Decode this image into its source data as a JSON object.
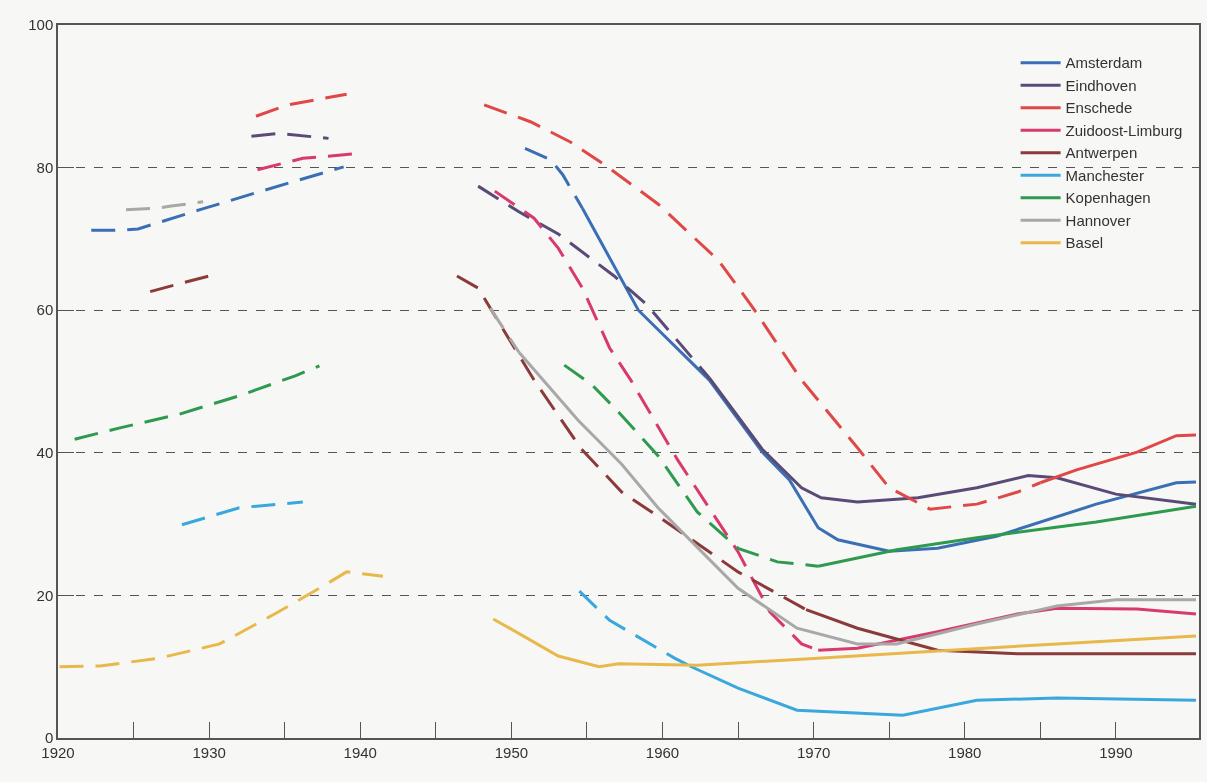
{
  "chart_data": {
    "type": "line",
    "xlim": [
      1920,
      1995.5
    ],
    "ylim": [
      0,
      100
    ],
    "xticks": [
      1920,
      {
        "value": 1925,
        "label": null
      },
      1930,
      {
        "value": 1935,
        "label": null
      },
      1940,
      {
        "value": 1945,
        "label": null
      },
      1950,
      {
        "value": 1955,
        "label": null
      },
      1960,
      {
        "value": 1965,
        "label": null
      },
      1970,
      {
        "value": 1975,
        "label": null
      },
      1980,
      {
        "value": 1985,
        "label": null
      },
      1990
    ],
    "yticks": [
      0,
      20,
      40,
      60,
      80,
      100
    ],
    "grid": "y",
    "legend": "top right",
    "marker": "none",
    "series": [
      {
        "name": "Amsterdam",
        "color": "#3a6fb5",
        "line_style": "solid",
        "x": [
          1954.7,
          1958.4,
          1963.1,
          1966.6,
          1968.4,
          1970.3,
          1971.6,
          1975,
          1978.2,
          1982.1,
          1988.7,
          1994,
          1995.3
        ],
        "values": [
          74.3,
          60,
          50.2,
          40.1,
          36.2,
          29.5,
          27.8,
          26.2,
          26.6,
          28.3,
          32.8,
          35.8,
          35.9
        ]
      },
      {
        "color": "#3a6fb5",
        "line_style": "dashed",
        "x": [
          1922.2,
          1924.1,
          1925.3,
          1929.4,
          1933.3,
          1936,
          1938.9,
          1945,
          1950.9,
          1952.6,
          1953.4,
          1954.7
        ],
        "values": [
          71.2,
          71.2,
          71.4,
          74.1,
          76.6,
          78.3,
          80.1,
          null,
          82.7,
          81.1,
          79,
          74.3
        ]
      },
      {
        "name": "Eindhoven",
        "color": "#5a4a78",
        "line_style": "solid",
        "x": [
          1963.1,
          1966.6,
          1969.2,
          1970.5,
          1972.9,
          1976.9,
          1980.8,
          1984.2,
          1986.1,
          1990,
          1995.3
        ],
        "values": [
          50.5,
          40.5,
          35.1,
          33.7,
          33.1,
          33.7,
          35.1,
          36.8,
          36.5,
          34.2,
          32.8
        ]
      },
      {
        "color": "#5a4a78",
        "line_style": "dashed",
        "x": [
          1932.8,
          1934.6,
          1937.9,
          1942,
          1947.8,
          1950.5,
          1953.1,
          1956.8,
          1958.9,
          1963.1
        ],
        "values": [
          84.4,
          84.8,
          84.1,
          null,
          77.4,
          73.8,
          70.7,
          64.8,
          60.9,
          50.5
        ]
      },
      {
        "name": "Enschede",
        "color": "#e04848",
        "line_style": "solid",
        "x": [
          1985,
          1987.4,
          1991.4,
          1994,
          1995.3
        ],
        "values": [
          35.8,
          37.6,
          40.1,
          42.4,
          42.5
        ]
      },
      {
        "color": "#e04848",
        "line_style": "dashed",
        "x": [
          1933.1,
          1935.2,
          1939.1,
          1944,
          1948.2,
          1951.3,
          1953.9,
          1956.3,
          1959.7,
          1963.7,
          1966,
          1969.2,
          1972.9,
          1975,
          1977.7,
          1980.8,
          1983.5,
          1985
        ],
        "values": [
          87.2,
          88.8,
          90.3,
          null,
          88.8,
          86.4,
          83.6,
          80.2,
          74.9,
          67,
          60.3,
          50.2,
          40.7,
          35.1,
          32.1,
          32.8,
          34.5,
          35.8
        ]
      },
      {
        "name": "Zuidoost-Limburg",
        "color": "#d93a6e",
        "line_style": "solid",
        "x": [
          1970.3,
          1972.9,
          1978.2,
          1983.5,
          1986.1,
          1991.4,
          1995.3
        ],
        "values": [
          12.3,
          12.6,
          14.9,
          17.4,
          18.2,
          18.1,
          17.4
        ]
      },
      {
        "color": "#d93a6e",
        "line_style": "dashed",
        "x": [
          1933.2,
          1936.2,
          1939.5,
          1944,
          1948.9,
          1951.5,
          1953.1,
          1954.7,
          1956.5,
          1957.9,
          1961,
          1965,
          1967.1,
          1969.2,
          1970.3
        ],
        "values": [
          79.7,
          81.3,
          81.9,
          null,
          76.7,
          72.9,
          68.7,
          63.1,
          54.7,
          50.2,
          39,
          26.1,
          17.7,
          13.2,
          12.3
        ]
      },
      {
        "name": "Antwerpen",
        "color": "#8b3a3a",
        "line_style": "solid",
        "x": [
          1969.5,
          1972.9,
          1978.2,
          1983.5,
          1995.3
        ],
        "values": [
          18,
          15.4,
          12.3,
          11.8,
          11.8
        ]
      },
      {
        "color": "#8b3a3a",
        "line_style": "dashed",
        "x": [
          1926.1,
          1928,
          1930.2,
          1938,
          1946.4,
          1947.8,
          1949.4,
          1951.5,
          1954.6,
          1957.3,
          1959.7,
          1965,
          1969.5
        ],
        "values": [
          62.6,
          63.7,
          64.9,
          null,
          64.8,
          63.1,
          57.5,
          50.2,
          40.6,
          34.5,
          31.1,
          23.3,
          18
        ]
      },
      {
        "name": "Manchester",
        "color": "#3aa8dc",
        "line_style": "solid",
        "x": [
          1961.8,
          1965,
          1968.9,
          1975.9,
          1980.8,
          1986.1,
          1995.3
        ],
        "values": [
          10.1,
          7,
          3.9,
          3.2,
          5.3,
          5.6,
          5.3
        ]
      },
      {
        "color": "#3aa8dc",
        "line_style": "dashed",
        "x": [
          1928.2,
          1932,
          1936.2,
          1945,
          1954.5,
          1956.5,
          1960.8,
          1961.8
        ],
        "values": [
          29.9,
          32.3,
          33.1,
          null,
          20.6,
          16.5,
          11.2,
          10.1
        ]
      },
      {
        "name": "Kopenhagen",
        "color": "#2e9a4e",
        "line_style": "solid",
        "x": [
          1970.3,
          1975.5,
          1980.8,
          1988.7,
          1995.3
        ],
        "values": [
          24.1,
          26.4,
          28.1,
          30.3,
          32.5
        ]
      },
      {
        "color": "#2e9a4e",
        "line_style": "dashed",
        "x": [
          1921.1,
          1924.1,
          1928,
          1932,
          1935.7,
          1937.3,
          1945,
          1953.5,
          1955.3,
          1957.1,
          1959.7,
          1962.3,
          1965,
          1967.6,
          1970.3
        ],
        "values": [
          41.9,
          43.5,
          45.4,
          48,
          50.8,
          52.2,
          null,
          52.3,
          49.6,
          45.7,
          39.6,
          31.7,
          26.6,
          24.7,
          24.1
        ]
      },
      {
        "name": "Hannover",
        "color": "#a8a8a8",
        "line_style": "solid",
        "x": [
          1950.5,
          1952.1,
          1954.4,
          1957.3,
          1959.7,
          1965,
          1968.9,
          1972.9,
          1975.5,
          1980.8,
          1986.1,
          1990,
          1995.3
        ],
        "values": [
          54.1,
          50.2,
          44.6,
          38.4,
          32.3,
          21,
          15.4,
          13.2,
          13.2,
          16,
          18.5,
          19.4,
          19.4
        ]
      },
      {
        "color": "#a8a8a8",
        "line_style": "dashed",
        "x": [
          1924.5,
          1926.5,
          1927.5,
          1929.6,
          1940,
          1948.6,
          1950.5
        ],
        "values": [
          74.1,
          74.3,
          74.6,
          75.2,
          null,
          60.3,
          54.1
        ]
      },
      {
        "name": "Basel",
        "color": "#e8b84a",
        "line_style": "solid",
        "x": [
          1948.8,
          1953.1,
          1955.8,
          1957.1,
          1962.3,
          1970.3,
          1978.2,
          1986.1,
          1995.3
        ],
        "values": [
          16.7,
          11.5,
          10,
          10.4,
          10.2,
          11.2,
          12.2,
          13.2,
          14.3
        ]
      },
      {
        "color": "#e8b84a",
        "line_style": "dashed",
        "x": [
          1920.1,
          1922.8,
          1926.7,
          1930.7,
          1934.6,
          1937.3,
          1939.1,
          1941.5
        ],
        "values": [
          10,
          10.1,
          11.2,
          13.2,
          17.7,
          21,
          23.3,
          22.7
        ]
      }
    ]
  }
}
